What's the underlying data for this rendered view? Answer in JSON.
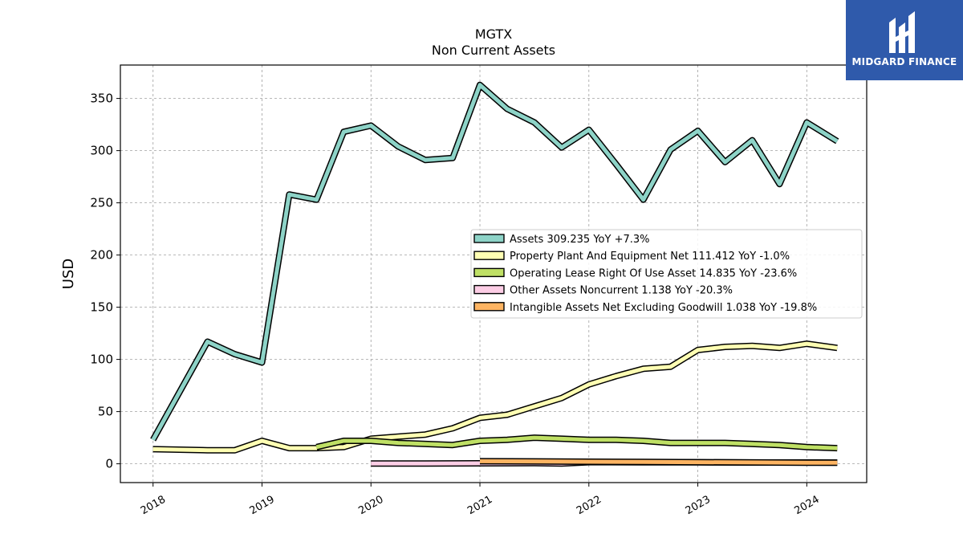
{
  "brand": {
    "name": "MIDGARD FINANCE",
    "bg_color": "#2f5aab"
  },
  "chart_data": {
    "type": "line",
    "title": "MGTX",
    "subtitle": "Non Current  Assets",
    "ylabel": "USD",
    "xlabel": "",
    "xlim": [
      2017.7,
      2024.55
    ],
    "ylim": [
      -18,
      382
    ],
    "xticks": [
      2018,
      2019,
      2020,
      2021,
      2022,
      2023,
      2024
    ],
    "yticks": [
      0,
      50,
      100,
      150,
      200,
      250,
      300,
      350
    ],
    "grid": true,
    "legend_position": "center-right",
    "series": [
      {
        "name": "Assets",
        "legend": "Assets  309.235 YoY +7.3%",
        "color": "#8dd3c7",
        "x": [
          2018.0,
          2018.5,
          2018.75,
          2019.0,
          2019.25,
          2019.5,
          2019.75,
          2020.0,
          2020.25,
          2020.5,
          2020.75,
          2021.0,
          2021.25,
          2021.5,
          2021.75,
          2022.0,
          2022.25,
          2022.5,
          2022.75,
          2023.0,
          2023.25,
          2023.5,
          2023.75,
          2024.0,
          2024.28
        ],
        "y": [
          23,
          117,
          105,
          97,
          258,
          253,
          318,
          324,
          304,
          291,
          293,
          363,
          340,
          327,
          303,
          320,
          287,
          253,
          301,
          319,
          289,
          310,
          268,
          327,
          309
        ]
      },
      {
        "name": "Property Plant And Equipment Net",
        "legend": "Property Plant And Equipment Net  111.412 YoY -1.0%",
        "color": "#ffffb3",
        "x": [
          2018.0,
          2018.5,
          2018.75,
          2019.0,
          2019.25,
          2019.5,
          2019.75,
          2020.0,
          2020.25,
          2020.5,
          2020.75,
          2021.0,
          2021.25,
          2021.5,
          2021.75,
          2022.0,
          2022.25,
          2022.5,
          2022.75,
          2023.0,
          2023.25,
          2023.5,
          2023.75,
          2024.0,
          2024.28
        ],
        "y": [
          14,
          13,
          13,
          22,
          15,
          15,
          16,
          24,
          26,
          28,
          34,
          44,
          47,
          55,
          63,
          76,
          84,
          91,
          93,
          109,
          112,
          113,
          111,
          115,
          111
        ]
      },
      {
        "name": "Operating Lease Right Of Use Asset",
        "legend": "Operating Lease Right Of Use Asset  14.835 YoY -23.6%",
        "color": "#bfe065",
        "x": [
          2019.5,
          2019.75,
          2020.0,
          2020.25,
          2020.5,
          2020.75,
          2021.0,
          2021.25,
          2021.5,
          2021.75,
          2022.0,
          2022.25,
          2022.5,
          2022.75,
          2023.0,
          2023.25,
          2023.5,
          2023.75,
          2024.0,
          2024.28
        ],
        "y": [
          16,
          22,
          22,
          20,
          19,
          18,
          22,
          23,
          25,
          24,
          23,
          23,
          22,
          20,
          20,
          20,
          19,
          18,
          16,
          15
        ]
      },
      {
        "name": "Other Assets Noncurrent",
        "legend": "Other Assets Noncurrent  1.138 YoY -20.3%",
        "color": "#fccde5",
        "x": [
          2020.0,
          2020.5,
          2021.0,
          2021.5,
          2021.75,
          2022.0,
          2022.5,
          2023.0,
          2023.5,
          2024.0,
          2024.28
        ],
        "y": [
          0.2,
          0.3,
          0.5,
          0.6,
          0.3,
          1.5,
          1.4,
          1.4,
          1.2,
          1.2,
          1.138
        ]
      },
      {
        "name": "Intangible Assets Net Excluding Goodwill",
        "legend": "Intangible Assets Net Excluding Goodwill  1.038 YoY -19.8%",
        "color": "#fdb462",
        "x": [
          2021.0,
          2021.5,
          2022.0,
          2022.5,
          2023.0,
          2023.5,
          2024.0,
          2024.28
        ],
        "y": [
          2.5,
          2.3,
          2.0,
          1.8,
          1.5,
          1.3,
          1.1,
          1.038
        ]
      }
    ]
  }
}
